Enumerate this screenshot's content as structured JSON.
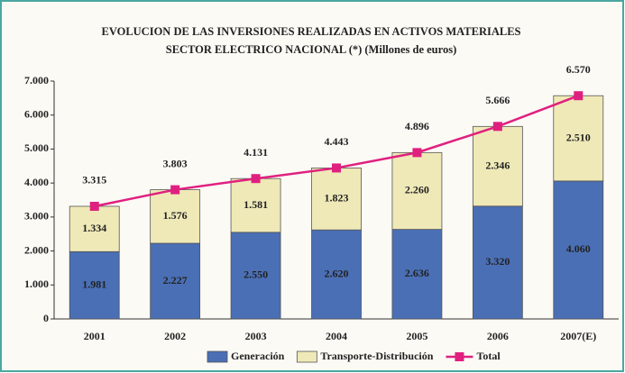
{
  "chart_data": {
    "type": "bar",
    "stacked": true,
    "title": "EVOLUCION DE LAS INVERSIONES  REALIZADAS EN ACTIVOS MATERIALES",
    "subtitle": "SECTOR ELECTRICO NACIONAL (*)  (Millones de euros)",
    "categories": [
      "2001",
      "2002",
      "2003",
      "2004",
      "2005",
      "2006",
      "2007(E)"
    ],
    "series": [
      {
        "name": "Generación",
        "color": "#4a6fb5",
        "type": "bar",
        "values": [
          1981,
          2227,
          2550,
          2620,
          2636,
          3320,
          4060
        ],
        "value_labels": [
          "1.981",
          "2.227",
          "2.550",
          "2.620",
          "2.636",
          "3.320",
          "4.060"
        ]
      },
      {
        "name": "Transporte-Distribución",
        "color": "#efe9b8",
        "type": "bar",
        "values": [
          1334,
          1576,
          1581,
          1823,
          2260,
          2346,
          2510
        ],
        "value_labels": [
          "1.334",
          "1.576",
          "1.581",
          "1.823",
          "2.260",
          "2.346",
          "2.510"
        ]
      },
      {
        "name": "Total",
        "color": "#e0207f",
        "type": "line",
        "values": [
          3315,
          3803,
          4131,
          4443,
          4896,
          5666,
          6570
        ],
        "value_labels": [
          "3.315",
          "3.803",
          "4.131",
          "4.443",
          "4.896",
          "5.666",
          "6.570"
        ]
      }
    ],
    "ylim": [
      0,
      7000
    ],
    "yticks": [
      0,
      {
        "value": 1000,
        "label": "1.000"
      },
      {
        "value": 2000,
        "label": "2.000"
      },
      {
        "value": 3000,
        "label": "3.000"
      },
      {
        "value": 4000,
        "label": "4.000"
      },
      {
        "value": 5000,
        "label": "5.000"
      },
      {
        "value": 6000,
        "label": "6.000"
      },
      {
        "value": 7000,
        "label": "7.000"
      }
    ],
    "legend": "bottom"
  }
}
